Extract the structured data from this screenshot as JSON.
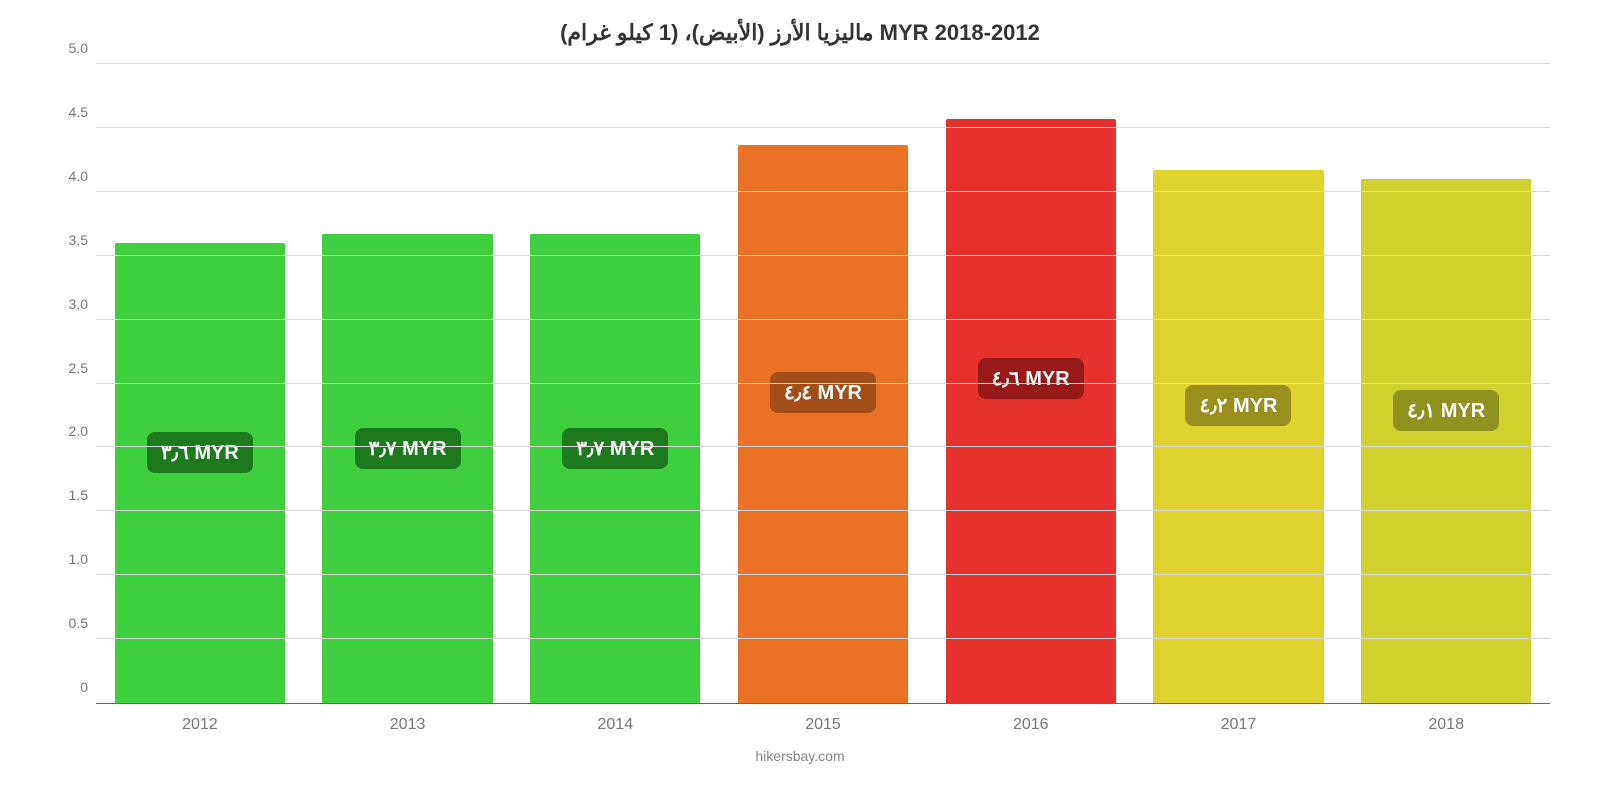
{
  "chart": {
    "type": "bar",
    "title": "ماليزيا الأرز (الأبيض)، (1 كيلو غرام) MYR 2018-2012",
    "title_fontsize": 22,
    "title_color": "#333333",
    "background_color": "#ffffff",
    "categories": [
      "2012",
      "2013",
      "2014",
      "2015",
      "2016",
      "2017",
      "2018"
    ],
    "values": [
      3.6,
      3.67,
      3.67,
      4.37,
      4.57,
      4.17,
      4.1
    ],
    "bar_colors": [
      "#3ecf3e",
      "#3ecf3e",
      "#3ecf3e",
      "#ea7125",
      "#e6312e",
      "#e1d32e",
      "#cfd22e"
    ],
    "value_labels": [
      "٣٫٦ MYR",
      "٣٫٧ MYR",
      "٣٫٧ MYR",
      "٤٫٤ MYR",
      "٤٫٦ MYR",
      "٤٫٢ MYR",
      "٤٫١ MYR"
    ],
    "badge_colors": [
      "#1e7a1e",
      "#1e7a1e",
      "#1e7a1e",
      "#a34d18",
      "#971a18",
      "#9a8f1e",
      "#8f921e"
    ],
    "badge_bottom_pct": [
      50,
      50,
      50,
      52,
      52,
      52,
      52
    ],
    "ylim": [
      0,
      5.0
    ],
    "ytick_step": 0.5,
    "yticks": [
      "0",
      "0.5",
      "1.0",
      "1.5",
      "2.0",
      "2.5",
      "3.0",
      "3.5",
      "4.0",
      "4.5",
      "5.0"
    ],
    "grid_color": "#d9d9d9",
    "axis_line_color": "#666666",
    "label_color": "#777777",
    "xlabel_fontsize": 16,
    "ylabel_fontsize": 14,
    "badge_fontsize": 20,
    "bar_width_ratio": 0.82,
    "attribution": "hikersbay.com"
  }
}
